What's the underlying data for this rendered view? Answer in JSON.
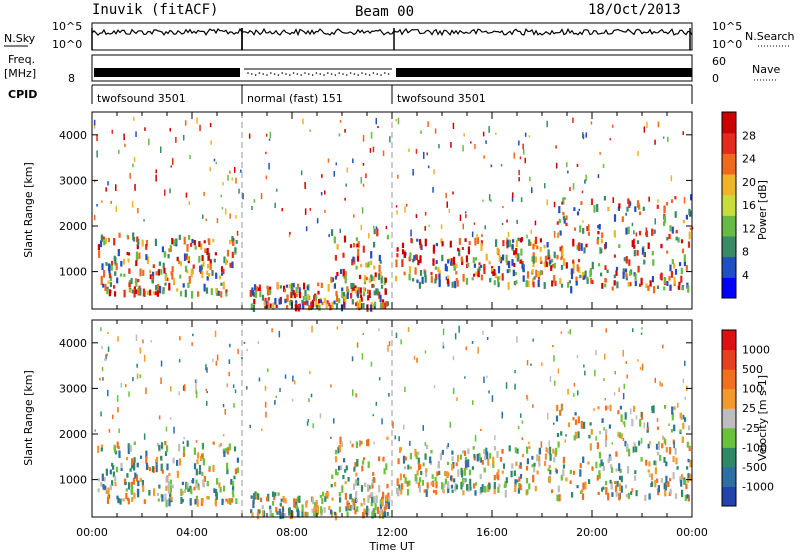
{
  "header": {
    "station": "Inuvik (fitACF)",
    "beam": "Beam 00",
    "date": "18/Oct/2013"
  },
  "noise_panel": {
    "left_label": "N.Sky",
    "right_label": "N.Search",
    "left_ticks": [
      "10^5",
      "10^0"
    ],
    "right_ticks": [
      "10^5",
      "10^0"
    ]
  },
  "freq_panel": {
    "left_label_1": "Freq.",
    "left_label_2": "[MHz]",
    "left_tick": "8",
    "right_label": "Nave",
    "right_ticks": [
      "60",
      "0"
    ]
  },
  "cpid_panel": {
    "label": "CPID",
    "segments": [
      {
        "text": "twofsound 3501",
        "start_hour": 0,
        "end_hour": 6
      },
      {
        "text": "normal (fast) 151",
        "start_hour": 6,
        "end_hour": 12
      },
      {
        "text": "twofsound 3501",
        "start_hour": 12,
        "end_hour": 24
      }
    ]
  },
  "time_axis": {
    "label": "Time UT",
    "ticks": [
      "00:00",
      "04:00",
      "08:00",
      "12:00",
      "16:00",
      "20:00",
      "00:00"
    ]
  },
  "chart_data": [
    {
      "type": "heatmap",
      "ylabel": "Slant Range [km]",
      "y_ticks": [
        "1000",
        "2000",
        "3000",
        "4000"
      ],
      "ylim": [
        180,
        4500
      ],
      "xlim_hours": [
        0,
        24
      ],
      "colorbar": {
        "label": "Power [dB]",
        "ticks": [
          "28",
          "24",
          "20",
          "16",
          "12",
          "8",
          "4"
        ],
        "colors": [
          "#0000ff",
          "#1f4fc0",
          "#3b8a66",
          "#66bb44",
          "#c8dc3c",
          "#f0b429",
          "#ee6a1e",
          "#e42a1a",
          "#cc0000"
        ]
      },
      "dashed_line_hours": [
        6,
        12
      ]
    },
    {
      "type": "heatmap",
      "ylabel": "Slant Range [km]",
      "y_ticks": [
        "1000",
        "2000",
        "3000",
        "4000"
      ],
      "ylim": [
        180,
        4500
      ],
      "xlim_hours": [
        0,
        24
      ],
      "colorbar": {
        "label": "Velocity [m s-1]",
        "ticks": [
          "1000",
          "500",
          "100",
          "25",
          "-25",
          "-100",
          "-500",
          "-1000"
        ],
        "colors": [
          "#2244aa",
          "#2d6fa5",
          "#2e8a66",
          "#6ac23c",
          "#bdbdbd",
          "#f29a2e",
          "#f07020",
          "#e8401e",
          "#dd1111"
        ]
      },
      "dashed_line_hours": [
        6,
        12
      ]
    }
  ]
}
